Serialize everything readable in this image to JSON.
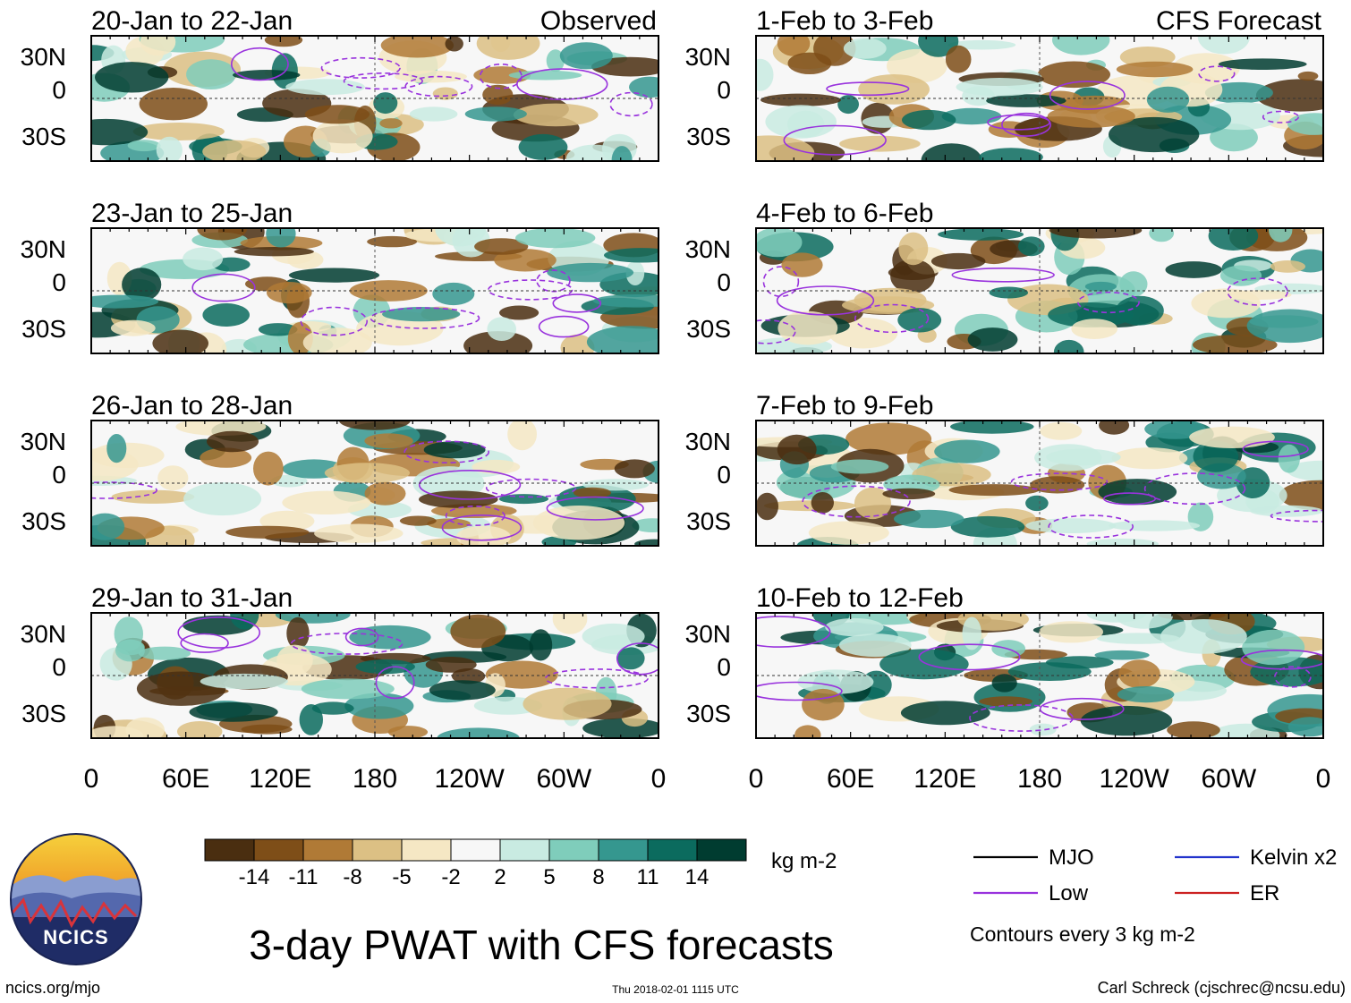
{
  "chart_data": {
    "type": "heatmap",
    "title": "3-day PWAT with CFS forecasts",
    "variable": "Precipitable water anomaly",
    "units": "kg m-2",
    "colorbar": {
      "tick_labels": [
        "-14",
        "-11",
        "-8",
        "-5",
        "-2",
        "2",
        "5",
        "8",
        "11",
        "14"
      ],
      "colors": [
        "#4a2e10",
        "#7e4e18",
        "#b07a36",
        "#dcc084",
        "#f5e7c4",
        "#f7f7f7",
        "#c9ebe2",
        "#7fcdbb",
        "#35978f",
        "#0b6b5e",
        "#003c30"
      ]
    },
    "x_tick_labels": [
      "0",
      "60E",
      "120E",
      "180",
      "120W",
      "60W",
      "0"
    ],
    "y_tick_labels": [
      "30N",
      "0",
      "30S"
    ],
    "columns": [
      {
        "header": "Observed",
        "panels": [
          {
            "period": "20-Jan to 22-Jan"
          },
          {
            "period": "23-Jan to 25-Jan"
          },
          {
            "period": "26-Jan to 28-Jan"
          },
          {
            "period": "29-Jan to 31-Jan"
          }
        ]
      },
      {
        "header": "CFS Forecast",
        "panels": [
          {
            "period": "1-Feb to 3-Feb"
          },
          {
            "period": "4-Feb to 6-Feb"
          },
          {
            "period": "7-Feb to 9-Feb"
          },
          {
            "period": "10-Feb to 12-Feb"
          }
        ]
      }
    ],
    "legend": {
      "items": [
        {
          "label": "MJO",
          "color": "#000000"
        },
        {
          "label": "Kelvin x2",
          "color": "#2233cc"
        },
        {
          "label": "Low",
          "color": "#9933dd"
        },
        {
          "label": "ER",
          "color": "#cc2222"
        }
      ],
      "note": "Contours every 3 kg m-2"
    }
  },
  "logo": {
    "text": "NCICS"
  },
  "footer": {
    "website": "ncics.org/mjo",
    "timestamp": "Thu 2018-02-01 1115 UTC",
    "author": "Carl Schreck (cjschrec@ncsu.edu)"
  }
}
